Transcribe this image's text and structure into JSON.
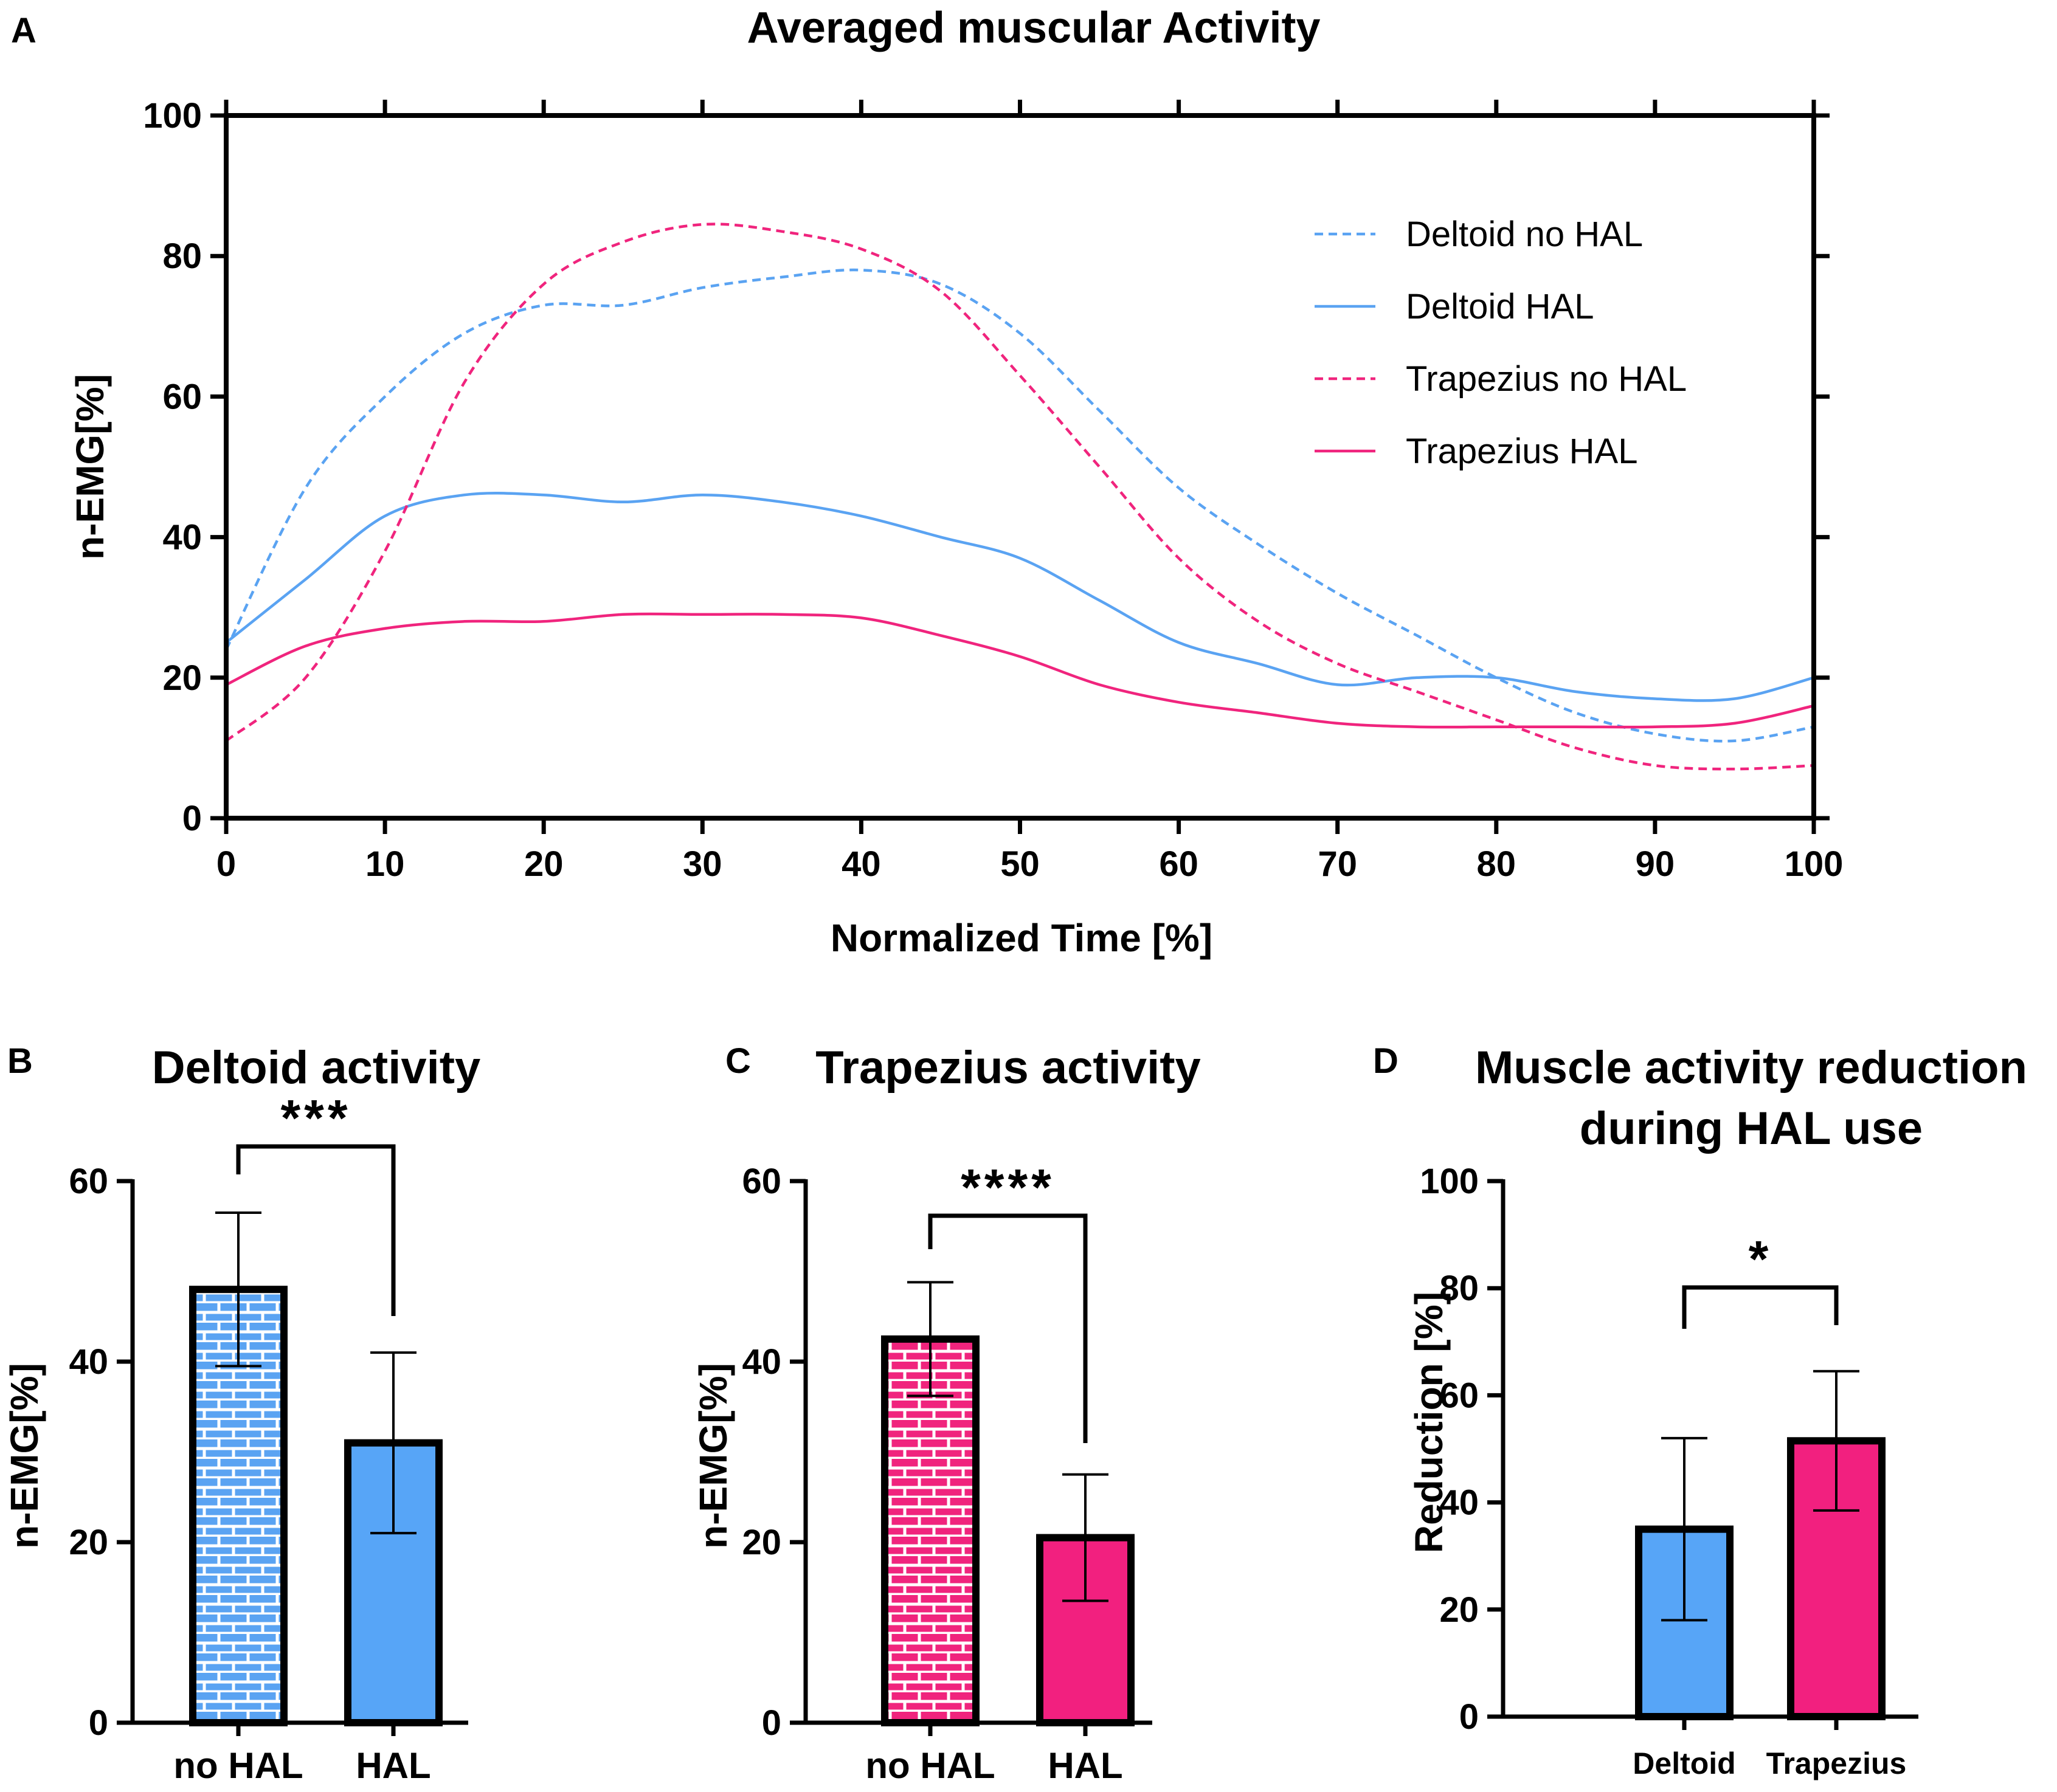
{
  "colors": {
    "deltoid": "#5aa3f2",
    "trapezius": "#f0247d",
    "deltoid_fill": "#57a5f7",
    "trapezius_fill": "#f2207f",
    "axis": "#000000"
  },
  "chart_data": [
    {
      "panel": "A",
      "type": "line",
      "title": "Averaged muscular Activity",
      "xlabel": "Normalized Time [%]",
      "ylabel": "n-EMG[%]",
      "xlim": [
        0,
        100
      ],
      "ylim": [
        0,
        100
      ],
      "xticks": [
        "0",
        "10",
        "20",
        "30",
        "40",
        "50",
        "60",
        "70",
        "80",
        "90",
        "100"
      ],
      "yticks": [
        "0",
        "20",
        "40",
        "60",
        "80",
        "100"
      ],
      "legend_position": "top-right",
      "x": [
        0,
        5,
        10,
        15,
        20,
        25,
        30,
        35,
        40,
        45,
        50,
        55,
        60,
        65,
        70,
        75,
        80,
        85,
        90,
        95,
        100
      ],
      "series": [
        {
          "name": "Deltoid no HAL",
          "style": "dashed",
          "values": [
            24,
            47,
            60,
            69,
            73,
            73,
            75.5,
            77,
            78,
            76,
            69,
            58,
            47,
            39,
            32,
            26,
            20,
            15,
            12,
            11,
            13
          ]
        },
        {
          "name": "Deltoid HAL",
          "style": "solid",
          "values": [
            25,
            34,
            43,
            46,
            46,
            45,
            46,
            45,
            43,
            40,
            37,
            31,
            25,
            22,
            19,
            20,
            20,
            18,
            17,
            17,
            20
          ]
        },
        {
          "name": "Trapezius no HAL",
          "style": "dashed",
          "values": [
            11,
            20,
            38,
            62,
            76,
            82,
            84.5,
            83.5,
            81,
            75,
            63,
            50,
            37,
            28,
            22,
            18,
            14,
            10,
            7.5,
            7,
            7.5
          ]
        },
        {
          "name": "Trapezius HAL",
          "style": "solid",
          "values": [
            19,
            24.5,
            27,
            28,
            28,
            29,
            29,
            29,
            28.5,
            26,
            23,
            19,
            16.5,
            15,
            13.5,
            13,
            13,
            13,
            13,
            13.5,
            16
          ]
        }
      ]
    },
    {
      "panel": "B",
      "type": "bar",
      "title": "Deltoid activity",
      "ylabel": "n-EMG[%]",
      "ylim": [
        0,
        60
      ],
      "yticks": [
        "0",
        "20",
        "40",
        "60"
      ],
      "categories": [
        "no HAL",
        "HAL"
      ],
      "values": [
        48,
        31
      ],
      "errors": [
        8.5,
        10
      ],
      "fills": [
        "pattern",
        "solid"
      ],
      "significance": "***"
    },
    {
      "panel": "C",
      "type": "bar",
      "title": "Trapezius activity",
      "ylabel": "n-EMG[%]",
      "ylim": [
        0,
        60
      ],
      "yticks": [
        "0",
        "20",
        "40",
        "60"
      ],
      "categories": [
        "no HAL",
        "HAL"
      ],
      "values": [
        42.5,
        20.5
      ],
      "errors": [
        6.3,
        7
      ],
      "fills": [
        "pattern",
        "solid"
      ],
      "significance": "****"
    },
    {
      "panel": "D",
      "type": "bar",
      "title_lines": [
        "Muscle activity reduction",
        "during HAL use"
      ],
      "ylabel": "Reduction [%]",
      "ylim": [
        0,
        100
      ],
      "yticks": [
        "0",
        "20",
        "40",
        "60",
        "80",
        "100"
      ],
      "categories": [
        "Deltoid",
        "Trapezius"
      ],
      "values": [
        35,
        51.5
      ],
      "errors": [
        17,
        13
      ],
      "fills": [
        "solid",
        "solid"
      ],
      "significance": "*"
    }
  ]
}
